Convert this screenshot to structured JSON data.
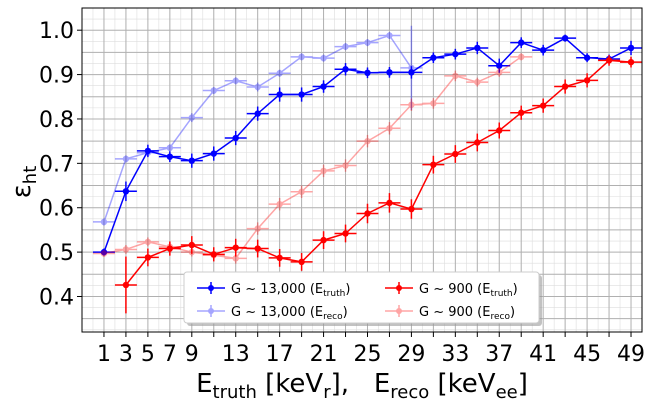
{
  "chart_data": {
    "type": "line",
    "xlabel": {
      "main1": "E",
      "sub1": "truth",
      "unit1a": " [keV",
      "unit1sub": "r",
      "unit1b": "],   ",
      "main2": "E",
      "sub2": "reco",
      "unit2a": " [keV",
      "unit2sub": "ee",
      "unit2b": "]"
    },
    "ylabel": {
      "main": "ε",
      "sub": "ht"
    },
    "xlim": [
      -1,
      50
    ],
    "ylim": [
      0.32,
      1.05
    ],
    "xticks": [
      1,
      3,
      5,
      7,
      9,
      13,
      17,
      21,
      25,
      29,
      33,
      37,
      41,
      45,
      49
    ],
    "yticks": [
      0.4,
      0.5,
      0.6,
      0.7,
      0.8,
      0.9,
      1.0
    ],
    "ytick_labels": [
      "0.4",
      "0.5",
      "0.6",
      "0.7",
      "0.8",
      "0.9",
      "1.0"
    ],
    "grid": true,
    "legend_placement": "lower-center",
    "series": [
      {
        "name": "G ~ 13,000 (E",
        "name_sub": "truth",
        "name_end": ")",
        "color": "#0000ff",
        "alpha": 1.0,
        "x": [
          1,
          3,
          5,
          7,
          9,
          11,
          13,
          15,
          17,
          19,
          21,
          23,
          25,
          27,
          29,
          31,
          33,
          35,
          37,
          39,
          41,
          43,
          45,
          47,
          49
        ],
        "y": [
          0.5,
          0.637,
          0.728,
          0.715,
          0.706,
          0.722,
          0.757,
          0.812,
          0.855,
          0.855,
          0.873,
          0.912,
          0.904,
          0.905,
          0.905,
          0.938,
          0.946,
          0.96,
          0.92,
          0.972,
          0.955,
          0.982,
          0.938,
          0.935,
          0.96
        ],
        "yerr": [
          0.008,
          0.022,
          0.014,
          0.012,
          0.016,
          0.016,
          0.016,
          0.016,
          0.016,
          0.016,
          0.014,
          0.014,
          0.012,
          0.012,
          0.014,
          0.012,
          0.012,
          0.014,
          0.016,
          0.012,
          0.012,
          0.008,
          0.01,
          0.01,
          0.016
        ]
      },
      {
        "name": "G ~ 13,000 (E",
        "name_sub": "reco",
        "name_end": ")",
        "color": "#0000ff",
        "alpha": 0.35,
        "x": [
          1,
          3,
          5,
          7,
          9,
          11,
          13,
          15,
          17,
          19,
          21,
          23,
          25,
          27,
          29
        ],
        "y": [
          0.568,
          0.71,
          0.724,
          0.735,
          0.803,
          0.864,
          0.886,
          0.872,
          0.903,
          0.94,
          0.937,
          0.963,
          0.972,
          0.988,
          0.915
        ],
        "yerr": [
          0.008,
          0.008,
          0.008,
          0.008,
          0.01,
          0.008,
          0.008,
          0.01,
          0.008,
          0.008,
          0.008,
          0.008,
          0.008,
          0.008,
          0.095
        ]
      },
      {
        "name": "G ~ 900 (E",
        "name_sub": "truth",
        "name_end": ")",
        "color": "#ff0000",
        "alpha": 1.0,
        "x": [
          3,
          5,
          7,
          9,
          11,
          13,
          15,
          17,
          19,
          21,
          23,
          25,
          27,
          29,
          31,
          33,
          35,
          37,
          39,
          41,
          43,
          45,
          47,
          49
        ],
        "y": [
          0.426,
          0.488,
          0.508,
          0.516,
          0.495,
          0.51,
          0.508,
          0.487,
          0.478,
          0.527,
          0.542,
          0.587,
          0.611,
          0.597,
          0.697,
          0.721,
          0.747,
          0.774,
          0.814,
          0.83,
          0.873,
          0.887,
          0.932,
          0.928
        ],
        "yerr": [
          0.064,
          0.02,
          0.016,
          0.02,
          0.016,
          0.02,
          0.02,
          0.02,
          0.02,
          0.02,
          0.02,
          0.022,
          0.022,
          0.022,
          0.02,
          0.02,
          0.02,
          0.018,
          0.016,
          0.016,
          0.016,
          0.016,
          0.012,
          0.012
        ]
      },
      {
        "name": "G ~ 900 (E",
        "name_sub": "reco",
        "name_end": ")",
        "color": "#ff0000",
        "alpha": 0.35,
        "x": [
          1,
          3,
          5,
          7,
          9,
          11,
          13,
          15,
          17,
          19,
          21,
          23,
          25,
          27,
          29,
          31,
          33,
          35,
          37,
          39
        ],
        "y": [
          0.497,
          0.506,
          0.523,
          0.512,
          0.5,
          0.493,
          0.486,
          0.553,
          0.608,
          0.636,
          0.683,
          0.695,
          0.75,
          0.779,
          0.832,
          0.835,
          0.897,
          0.883,
          0.905,
          0.94
        ],
        "yerr": [
          0.008,
          0.01,
          0.01,
          0.01,
          0.01,
          0.01,
          0.012,
          0.014,
          0.014,
          0.014,
          0.014,
          0.014,
          0.014,
          0.014,
          0.014,
          0.012,
          0.012,
          0.01,
          0.01,
          0.008
        ]
      }
    ]
  }
}
